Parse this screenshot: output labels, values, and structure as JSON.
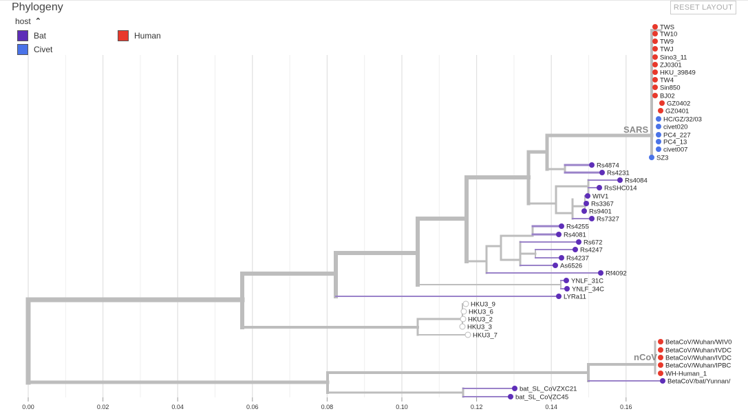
{
  "panel": {
    "title": "Phylogeny",
    "reset_label": "RESET LAYOUT"
  },
  "legend": {
    "title": "host",
    "items": [
      {
        "label": "Bat",
        "color": "#5e2eb8"
      },
      {
        "label": "Human",
        "color": "#e8392c"
      },
      {
        "label": "Civet",
        "color": "#4a73e8"
      }
    ]
  },
  "axis": {
    "ticks": [
      "0.00",
      "0.02",
      "0.04",
      "0.06",
      "0.08",
      "0.10",
      "0.12",
      "0.14",
      "0.16"
    ]
  },
  "clade_labels": [
    "SARS",
    "nCoV"
  ],
  "colors": {
    "branch": "#bdbdbd",
    "bat_branch": "#9a82c9",
    "grid": "#e0e0e0",
    "unknown_tip": "#ffffff"
  },
  "tips": [
    {
      "name": "TWS",
      "host": "Human"
    },
    {
      "name": "TW10",
      "host": "Human"
    },
    {
      "name": "TW9",
      "host": "Human"
    },
    {
      "name": "TWJ",
      "host": "Human"
    },
    {
      "name": "Sino3_11",
      "host": "Human"
    },
    {
      "name": "ZJ0301",
      "host": "Human"
    },
    {
      "name": "HKU_39849",
      "host": "Human"
    },
    {
      "name": "TW4",
      "host": "Human"
    },
    {
      "name": "Sin850",
      "host": "Human"
    },
    {
      "name": "BJ02",
      "host": "Human"
    },
    {
      "name": "GZ0402",
      "host": "Human"
    },
    {
      "name": "GZ0401",
      "host": "Human"
    },
    {
      "name": "HC/GZ/32/03",
      "host": "Civet"
    },
    {
      "name": "civet020",
      "host": "Civet"
    },
    {
      "name": "PC4_227",
      "host": "Civet"
    },
    {
      "name": "PC4_13",
      "host": "Civet"
    },
    {
      "name": "civet007",
      "host": "Civet"
    },
    {
      "name": "SZ3",
      "host": "Civet"
    },
    {
      "name": "Rs4874",
      "host": "Bat"
    },
    {
      "name": "Rs4231",
      "host": "Bat"
    },
    {
      "name": "Rs4084",
      "host": "Bat"
    },
    {
      "name": "RsSHC014",
      "host": "Bat"
    },
    {
      "name": "WIV1",
      "host": "Bat"
    },
    {
      "name": "Rs3367",
      "host": "Bat"
    },
    {
      "name": "Rs9401",
      "host": "Bat"
    },
    {
      "name": "Rs7327",
      "host": "Bat"
    },
    {
      "name": "Rs4255",
      "host": "Bat"
    },
    {
      "name": "Rs4081",
      "host": "Bat"
    },
    {
      "name": "Rs672",
      "host": "Bat"
    },
    {
      "name": "Rs4247",
      "host": "Bat"
    },
    {
      "name": "Rs4237",
      "host": "Bat"
    },
    {
      "name": "As6526",
      "host": "Bat"
    },
    {
      "name": "Rf4092",
      "host": "Bat"
    },
    {
      "name": "YNLF_31C",
      "host": "Bat"
    },
    {
      "name": "YNLF_34C",
      "host": "Bat"
    },
    {
      "name": "LYRa11",
      "host": "Bat"
    },
    {
      "name": "HKU3_9",
      "host": ""
    },
    {
      "name": "HKU3_6",
      "host": ""
    },
    {
      "name": "HKU3_2",
      "host": ""
    },
    {
      "name": "HKU3_3",
      "host": ""
    },
    {
      "name": "HKU3_7",
      "host": ""
    },
    {
      "name": "BetaCoV/Wuhan/WIV0",
      "host": "Human"
    },
    {
      "name": "BetaCoV/Wuhan/IVDC",
      "host": "Human"
    },
    {
      "name": "BetaCoV/Wuhan/IVDC",
      "host": "Human"
    },
    {
      "name": "BetaCoV/Wuhan/IPBC",
      "host": "Human"
    },
    {
      "name": "WH-Human_1",
      "host": "Human"
    },
    {
      "name": "BetaCoV/bat/Yunnan/",
      "host": "Bat"
    },
    {
      "name": "bat_SL_CoVZXC21",
      "host": "Bat"
    },
    {
      "name": "bat_SL_CoVZC45",
      "host": "Bat"
    }
  ]
}
